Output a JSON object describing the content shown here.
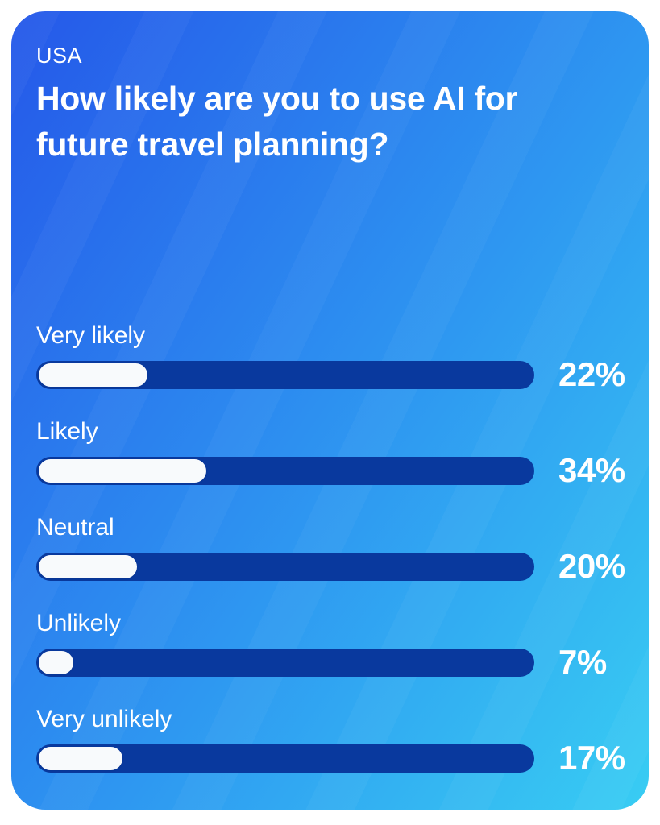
{
  "header": {
    "region": "USA",
    "title": "How likely are you to use AI for future travel planning?"
  },
  "chart_data": {
    "type": "bar",
    "orientation": "horizontal",
    "title": "How likely are you to use AI for future travel planning?",
    "subtitle": "USA",
    "categories": [
      "Very likely",
      "Likely",
      "Neutral",
      "Unlikely",
      "Very unlikely"
    ],
    "values": [
      22,
      34,
      20,
      7,
      17
    ],
    "value_labels": [
      "22%",
      "34%",
      "20%",
      "7%",
      "17%"
    ],
    "unit": "%",
    "xlim": [
      0,
      100
    ],
    "grid": false,
    "legend": "none",
    "value_label_position": "right-of-bar"
  },
  "colors": {
    "page_background": "#FFFFFF",
    "card_gradient_start": "#2558E9",
    "card_gradient_mid": "#2E97F1",
    "card_gradient_end": "#38CDF3",
    "bar_track": "#09399E",
    "bar_fill": "#F8FAFC",
    "text": "#FFFFFF"
  }
}
